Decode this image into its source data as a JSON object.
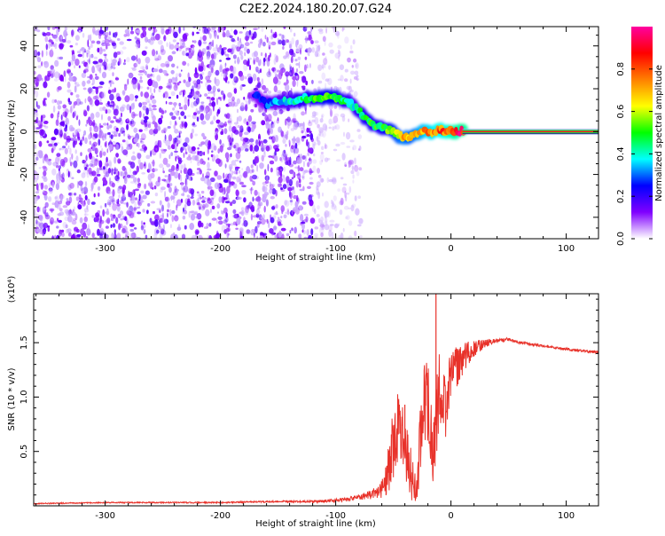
{
  "figure": {
    "title": "C2E2.2024.180.20.07.G24"
  },
  "chart_data": [
    {
      "type": "heatmap",
      "xlabel": "Height of straight line (km)",
      "ylabel": "Frequency (Hz)",
      "xlim": [
        -362,
        128
      ],
      "ylim": [
        -50,
        49
      ],
      "xticks": [
        -300,
        -200,
        -100,
        0,
        100
      ],
      "yticks": [
        -40,
        -20,
        0,
        20,
        40
      ],
      "grid": false,
      "colorbar": {
        "label": "Normalized spectral amplitude",
        "ticks": [
          0.0,
          0.2,
          0.4,
          0.6,
          0.8
        ],
        "range": [
          0,
          1
        ],
        "colormap": [
          "#ffffff",
          "#8000ff",
          "#0000ff",
          "#00ffff",
          "#00ff00",
          "#ffff00",
          "#ff8000",
          "#ff0000",
          "#ff00a0"
        ]
      },
      "regions": [
        {
          "description": "speckle noise",
          "x_range": [
            -362,
            -120
          ],
          "y_range": [
            -50,
            49
          ],
          "density": "high"
        },
        {
          "description": "sparse speckle",
          "x_range": [
            -120,
            -78
          ],
          "y_range": [
            -50,
            49
          ],
          "density": "low"
        }
      ],
      "ridge": {
        "x": [
          -170,
          -160,
          -150,
          -140,
          -130,
          -120,
          -110,
          -100,
          -95,
          -90,
          -85,
          -80,
          -75,
          -70,
          -65,
          -60,
          -55,
          -50,
          -45,
          -40,
          -35,
          -30,
          -25,
          -20,
          -15,
          -10,
          -5,
          0,
          10,
          128
        ],
        "y": [
          17,
          13,
          14,
          14,
          15,
          16,
          16,
          16,
          15,
          14,
          12,
          10,
          6,
          4,
          3,
          2,
          1,
          0,
          -2,
          -3,
          -2,
          -1,
          0,
          0,
          0,
          1,
          0,
          0,
          0,
          0
        ],
        "amplitude": [
          0.25,
          0.3,
          0.35,
          0.4,
          0.45,
          0.5,
          0.55,
          0.55,
          0.5,
          0.45,
          0.4,
          0.45,
          0.5,
          0.5,
          0.5,
          0.5,
          0.55,
          0.6,
          0.65,
          0.7,
          0.65,
          0.7,
          0.75,
          0.8,
          0.8,
          0.85,
          0.85,
          0.9,
          0.95,
          0.95
        ]
      }
    },
    {
      "type": "line",
      "xlabel": "Height of straight line (km)",
      "ylabel": "SNR (10 * v/v)",
      "multiplier_label": "(x10⁴)",
      "xlim": [
        -362,
        128
      ],
      "ylim": [
        0,
        1.95
      ],
      "xticks": [
        -300,
        -200,
        -100,
        0,
        100
      ],
      "yticks": [
        0.5,
        1.0,
        1.5
      ],
      "ytick_labels": [
        "0.5",
        "1.0",
        "1.5"
      ],
      "grid": false,
      "series": [
        {
          "color": "#e8322a",
          "x": [
            -362,
            -300,
            -200,
            -150,
            -120,
            -100,
            -90,
            -80,
            -70,
            -60,
            -55,
            -50,
            -45,
            -40,
            -35,
            -30,
            -25,
            -20,
            -15,
            -10,
            -5,
            0,
            10,
            20,
            30,
            40,
            50,
            60,
            80,
            100,
            128
          ],
          "y": [
            0.02,
            0.03,
            0.03,
            0.04,
            0.04,
            0.05,
            0.06,
            0.08,
            0.1,
            0.15,
            0.3,
            0.6,
            0.8,
            0.5,
            0.3,
            0.15,
            0.8,
            1.0,
            0.5,
            1.1,
            0.9,
            1.2,
            1.35,
            1.45,
            1.5,
            1.52,
            1.53,
            1.5,
            1.47,
            1.44,
            1.41
          ],
          "noise": [
            0.005,
            0.005,
            0.006,
            0.008,
            0.01,
            0.015,
            0.02,
            0.025,
            0.04,
            0.08,
            0.2,
            0.35,
            0.35,
            0.3,
            0.25,
            0.2,
            0.4,
            0.45,
            0.35,
            0.35,
            0.3,
            0.25,
            0.15,
            0.08,
            0.04,
            0.02,
            0.015,
            0.012,
            0.012,
            0.012,
            0.012
          ],
          "spikes": [
            {
              "x": -13,
              "y": 1.95
            },
            {
              "x": -40,
              "y": 0.93
            },
            {
              "x": -22,
              "y": 1.15
            }
          ]
        }
      ]
    }
  ]
}
